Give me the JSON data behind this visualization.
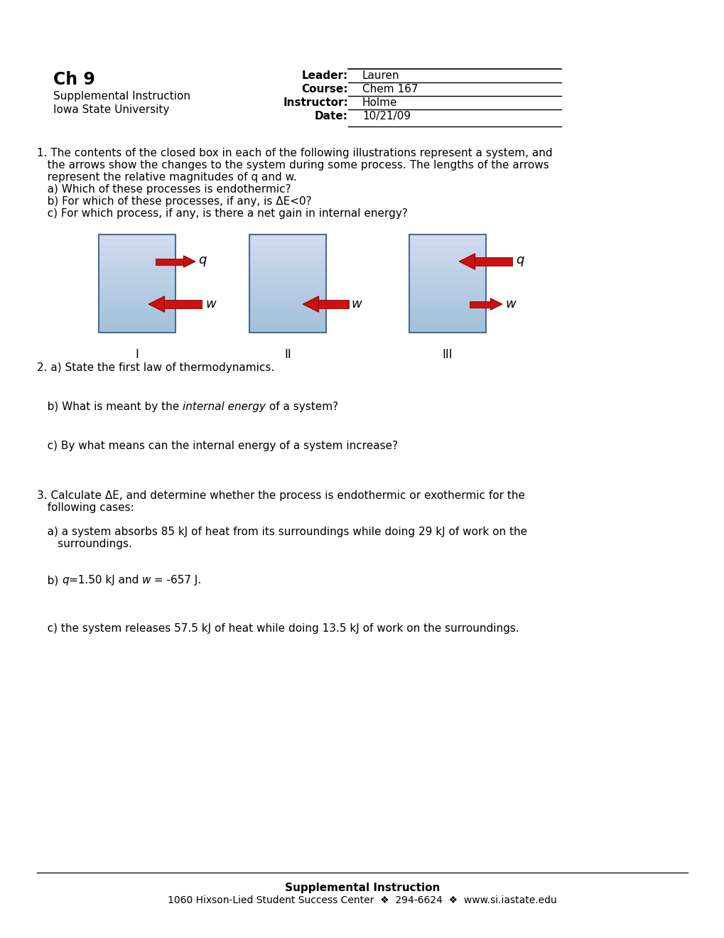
{
  "bg_color": "#ffffff",
  "title_bold": "Ch 9",
  "subtitle_lines": [
    "Supplemental Instruction",
    "Iowa State University"
  ],
  "header_labels": [
    "Leader:",
    "Course:",
    "Instructor:",
    "Date:"
  ],
  "header_values": [
    "Lauren",
    "Chem 167",
    "Holme",
    "10/21/09"
  ],
  "q1_text": "1. The contents of the closed box in each of the following illustrations represent a system, and",
  "q1_indent1": "   the arrows show the changes to the system during some process. The lengths of the arrows",
  "q1_indent2": "   represent the relative magnitudes of q and w.",
  "q1a": "   a) Which of these processes is endothermic?",
  "q1b": "   b) For which of these processes, if any, is ΔE<0?",
  "q1c": "   c) For which process, if any, is there a net gain in internal energy?",
  "diagram_labels": [
    "I",
    "II",
    "III"
  ],
  "q2_text": "2. a) State the first law of thermodynamics.",
  "q2b_prefix": "   b) What is meant by the ",
  "q2b_italic": "internal energy",
  "q2b_suffix": " of a system?",
  "q2c_text": "   c) By what means can the internal energy of a system increase?",
  "q3_text": "3. Calculate ΔE, and determine whether the process is endothermic or exothermic for the",
  "q3_indent": "   following cases:",
  "q3a_line1": "   a) a system absorbs 85 kJ of heat from its surroundings while doing 29 kJ of work on the",
  "q3a_line2": "      surroundings.",
  "q3b_prefix": "   b) ",
  "q3b_italic1": "q",
  "q3b_mid": "=1.50 kJ and ",
  "q3b_italic2": "w",
  "q3b_suffix": " = -657 J.",
  "q3c_text": "   c) the system releases 57.5 kJ of heat while doing 13.5 kJ of work on the surroundings.",
  "footer_bold": "Supplemental Instruction",
  "footer_line2": "1060 Hixson-Lied Student Success Center  ❖  294-6624  ❖  www.si.iastate.edu",
  "font_size": 11,
  "font_family": "DejaVu Sans"
}
